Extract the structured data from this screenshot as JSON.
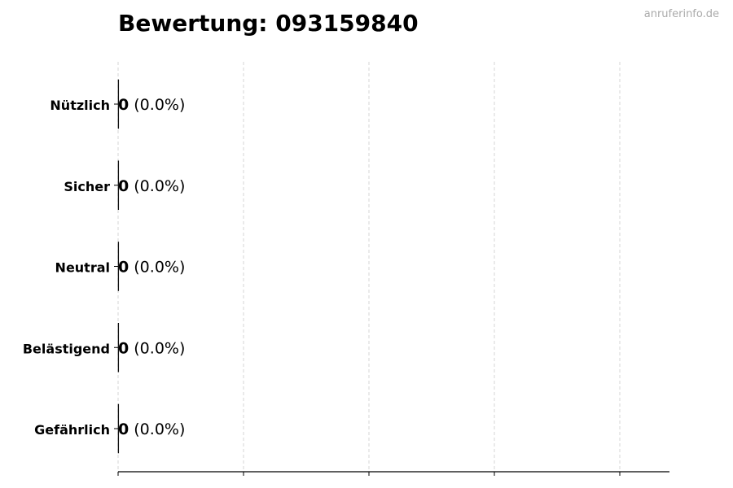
{
  "watermark": "anruferinfo.de",
  "chart_data": {
    "type": "bar",
    "orientation": "horizontal",
    "title": "Bewertung: 093159840",
    "xlabel": "",
    "ylabel": "",
    "categories": [
      "Nützlich",
      "Sicher",
      "Neutral",
      "Belästigend",
      "Gefährlich"
    ],
    "values": [
      0,
      0,
      0,
      0,
      0
    ],
    "data_labels": [
      {
        "count": "0",
        "percent": "(0.0%)"
      },
      {
        "count": "0",
        "percent": "(0.0%)"
      },
      {
        "count": "0",
        "percent": "(0.0%)"
      },
      {
        "count": "0",
        "percent": "(0.0%)"
      },
      {
        "count": "0",
        "percent": "(0.0%)"
      }
    ],
    "x_tick_labels_shown": false,
    "grid": "vertical dashed",
    "bar_edge_color": "#000000",
    "grid_color": "#cccccc"
  }
}
